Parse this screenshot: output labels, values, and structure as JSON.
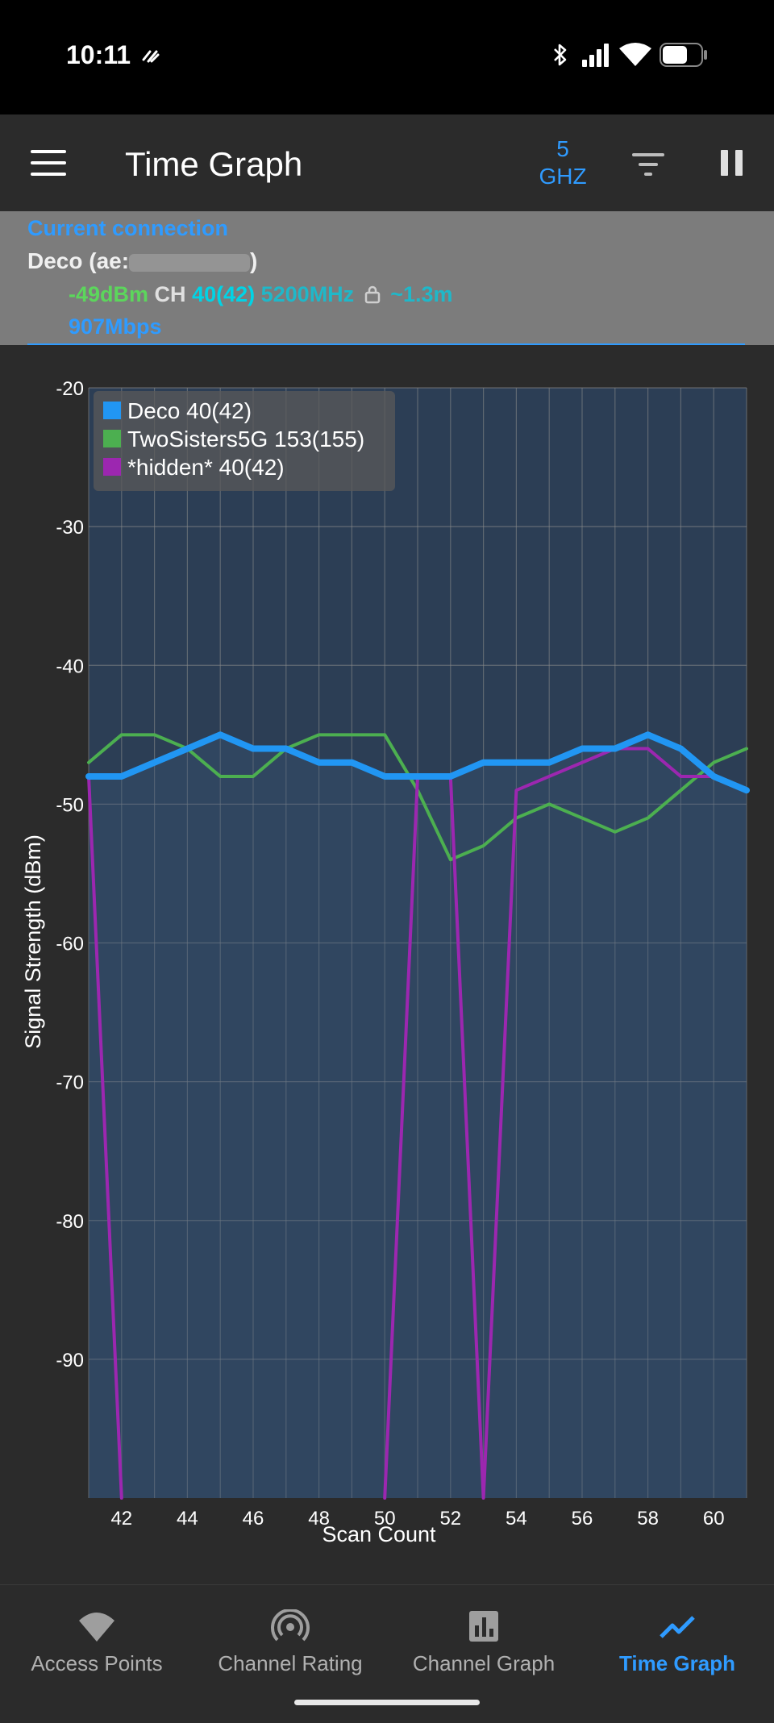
{
  "status_bar": {
    "time": "10:11"
  },
  "app_bar": {
    "title": "Time Graph",
    "band_top": "5",
    "band_bottom": "GHZ"
  },
  "connection": {
    "heading": "Current connection",
    "name_prefix": "Deco (ae:",
    "name_suffix": ")",
    "signal": "-49dBm",
    "ch_label": "CH",
    "channel": "40(42)",
    "frequency": "5200MHz",
    "distance": "~1.3m",
    "rate": "907Mbps"
  },
  "colors": {
    "accent": "#2f9bff",
    "deco": "#2196f3",
    "twosisters": "#4caf50",
    "hidden": "#9c27b0",
    "plot_fill": "#2c3e55"
  },
  "chart_data": {
    "type": "line",
    "xlabel": "Scan Count",
    "ylabel": "Signal Strength (dBm)",
    "xlim": [
      41,
      61
    ],
    "ylim": [
      -100,
      -20
    ],
    "xticks": [
      42,
      44,
      46,
      48,
      50,
      52,
      54,
      56,
      58,
      60
    ],
    "yticks": [
      -20,
      -30,
      -40,
      -50,
      -60,
      -70,
      -80,
      -90
    ],
    "grid": true,
    "legend_position": "top-left",
    "x": [
      41,
      42,
      43,
      44,
      45,
      46,
      47,
      48,
      49,
      50,
      51,
      52,
      53,
      54,
      55,
      56,
      57,
      58,
      59,
      60,
      61
    ],
    "series": [
      {
        "name": "Deco 40(42)",
        "color": "#2196f3",
        "width": 8,
        "values": [
          -48,
          -48,
          -47,
          -46,
          -45,
          -46,
          -46,
          -47,
          -47,
          -48,
          -48,
          -48,
          -47,
          -47,
          -47,
          -46,
          -46,
          -45,
          -46,
          -48,
          -49
        ]
      },
      {
        "name": "TwoSisters5G 153(155)",
        "color": "#4caf50",
        "width": 4,
        "values": [
          -47,
          -45,
          -45,
          -46,
          -48,
          -48,
          -46,
          -45,
          -45,
          -45,
          -49,
          -54,
          -53,
          -51,
          -50,
          -51,
          -52,
          -51,
          -49,
          -47,
          -46
        ]
      },
      {
        "name": "*hidden* 40(42)",
        "color": "#9c27b0",
        "width": 4,
        "values": [
          -48,
          -100,
          null,
          null,
          null,
          null,
          null,
          null,
          null,
          -100,
          -48,
          -48,
          -100,
          -49,
          -48,
          -47,
          -46,
          -46,
          -48,
          -48,
          -49
        ]
      }
    ]
  },
  "bottom_nav": {
    "items": [
      {
        "label": "Access Points"
      },
      {
        "label": "Channel Rating"
      },
      {
        "label": "Channel Graph"
      },
      {
        "label": "Time Graph"
      }
    ]
  }
}
